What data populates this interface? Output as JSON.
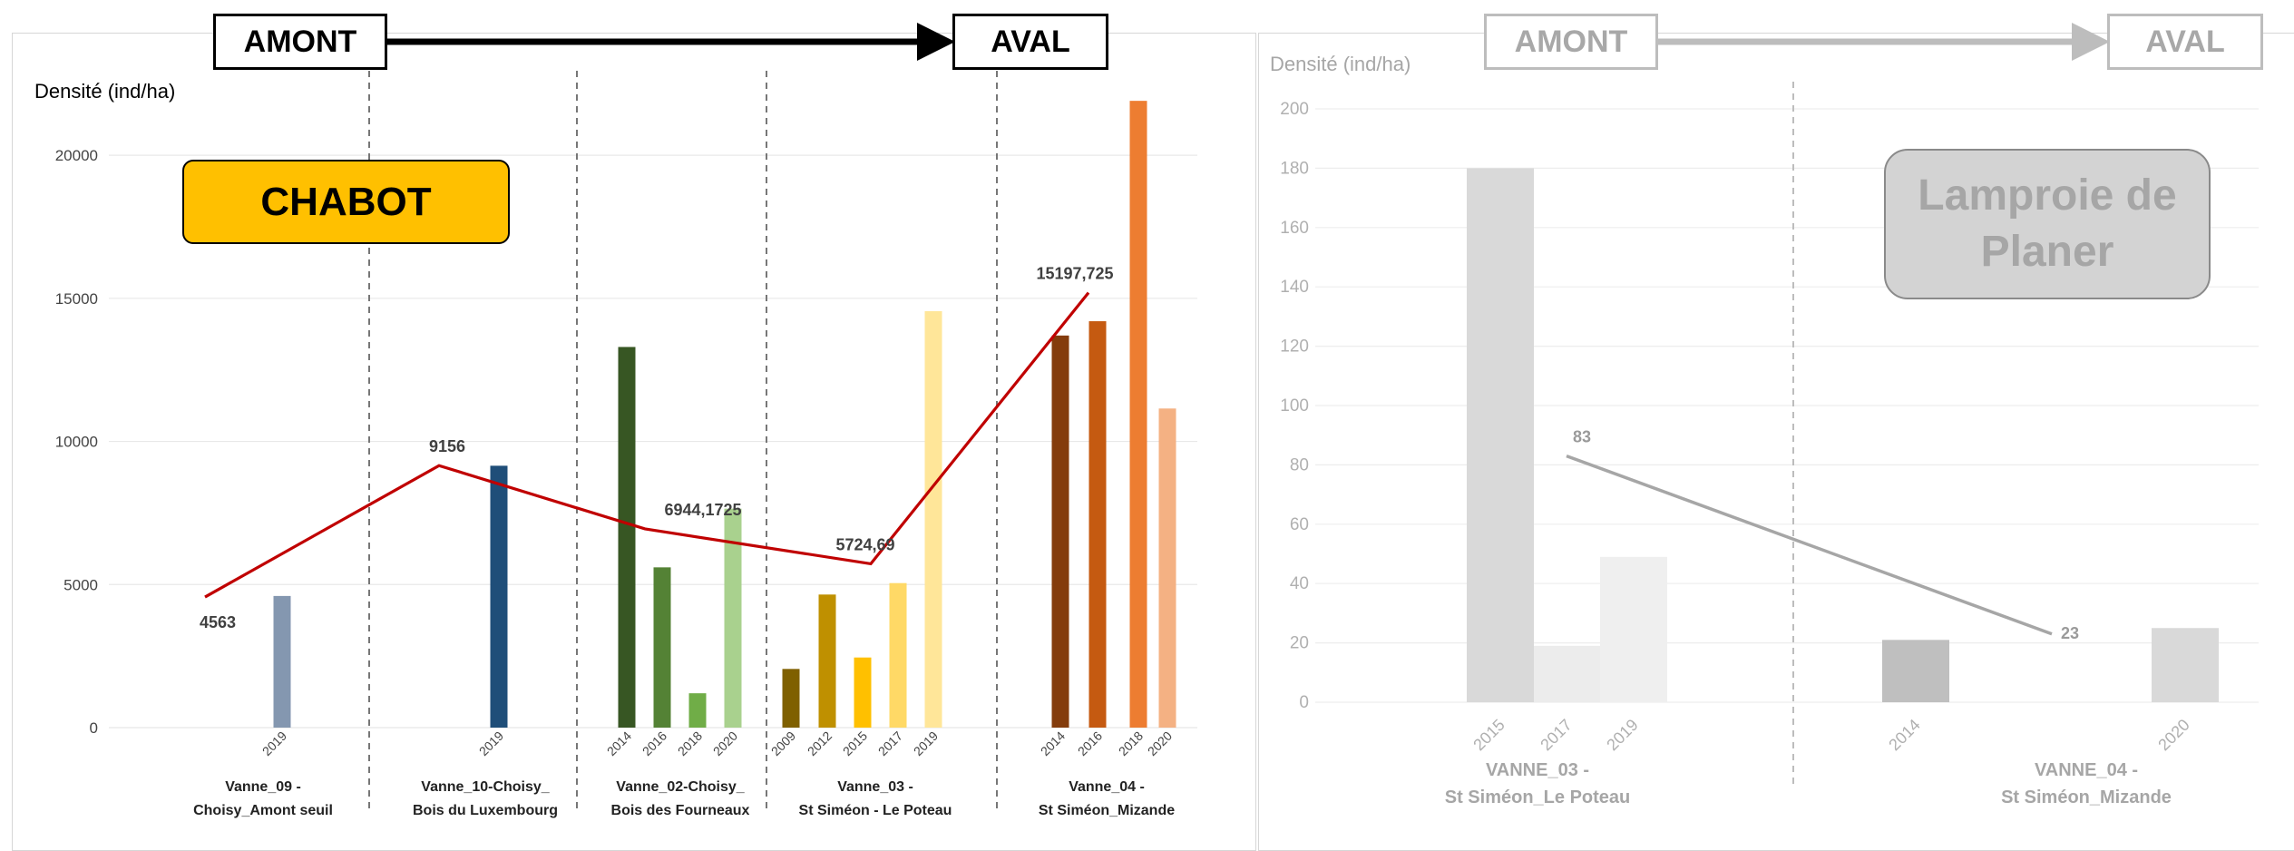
{
  "flow": {
    "left": {
      "upstream": "AMONT",
      "downstream": "AVAL"
    },
    "right": {
      "upstream": "AMONT",
      "downstream": "AVAL"
    }
  },
  "colors": {
    "trend_left": "#c00000",
    "trend_right": "#a6a6a6",
    "species_left_bg": "#ffc000",
    "species_right_bg": "#d3d3d3"
  },
  "chart_data": [
    {
      "type": "bar",
      "species": "CHABOT",
      "ylabel": "Densité (ind/ha)",
      "ylim": [
        0,
        22000
      ],
      "yticks": [
        0,
        5000,
        10000,
        15000,
        20000
      ],
      "grid": true,
      "groups": [
        {
          "label": [
            "Vanne_09 -",
            "Choisy_Amont seuil"
          ],
          "bars": [
            {
              "year": "2019",
              "value": 4600,
              "color": "#8497b0"
            }
          ]
        },
        {
          "label": [
            "Vanne_10-Choisy_",
            "Bois du Luxembourg"
          ],
          "bars": [
            {
              "year": "2019",
              "value": 9150,
              "color": "#1f4e79"
            }
          ]
        },
        {
          "label": [
            "Vanne_02-Choisy_",
            "Bois des Fourneaux"
          ],
          "bars": [
            {
              "year": "2014",
              "value": 13300,
              "color": "#375623"
            },
            {
              "year": "2016",
              "value": 5600,
              "color": "#548235"
            },
            {
              "year": "2018",
              "value": 1200,
              "color": "#70ad47"
            },
            {
              "year": "2020",
              "value": 7650,
              "color": "#a9d18e"
            }
          ]
        },
        {
          "label": [
            "Vanne_03 -",
            "St Siméon - Le Poteau"
          ],
          "bars": [
            {
              "year": "2009",
              "value": 2050,
              "color": "#7f6000"
            },
            {
              "year": "2012",
              "value": 4650,
              "color": "#bf9000"
            },
            {
              "year": "2015",
              "value": 2450,
              "color": "#ffc000"
            },
            {
              "year": "2017",
              "value": 5050,
              "color": "#ffd966"
            },
            {
              "year": "2019",
              "value": 14550,
              "color": "#ffe699"
            }
          ]
        },
        {
          "label": [
            "Vanne_04 -",
            "St Siméon_Mizande"
          ],
          "bars": [
            {
              "year": "2014",
              "value": 13700,
              "color": "#843c0c"
            },
            {
              "year": "2016",
              "value": 14200,
              "color": "#c55a11"
            },
            {
              "year": "2018",
              "value": 21900,
              "color": "#ed7d31"
            },
            {
              "year": "2020",
              "value": 11150,
              "color": "#f4b183"
            }
          ]
        }
      ],
      "trend": {
        "values": [
          4563,
          9156,
          6944.1725,
          5724.69,
          15197.725
        ],
        "labels": [
          "4563",
          "9156",
          "6944,1725",
          "5724,69",
          "15197,725"
        ]
      }
    },
    {
      "type": "bar",
      "species": "Lamproie de Planer",
      "ylabel": "Densité (ind/ha)",
      "ylim": [
        0,
        200
      ],
      "yticks": [
        0,
        20,
        40,
        60,
        80,
        100,
        120,
        140,
        160,
        180,
        200
      ],
      "grid": true,
      "groups": [
        {
          "label": [
            "VANNE_03 -",
            "St Siméon_Le Poteau"
          ],
          "bars": [
            {
              "year": "2015",
              "value": 180,
              "color": "#d9d9d9"
            },
            {
              "year": "2017",
              "value": 19,
              "color": "#ececec"
            },
            {
              "year": "2019",
              "value": 49,
              "color": "#efefef"
            }
          ]
        },
        {
          "label": [
            "VANNE_04 -",
            "St Siméon_Mizande"
          ],
          "bars": [
            {
              "year": "2014",
              "value": 21,
              "color": "#bfbfbf"
            },
            {
              "year": "2020",
              "value": 25,
              "color": "#d9d9d9"
            }
          ]
        }
      ],
      "trend": {
        "values": [
          83,
          23
        ],
        "labels": [
          "83",
          "23"
        ]
      }
    }
  ]
}
